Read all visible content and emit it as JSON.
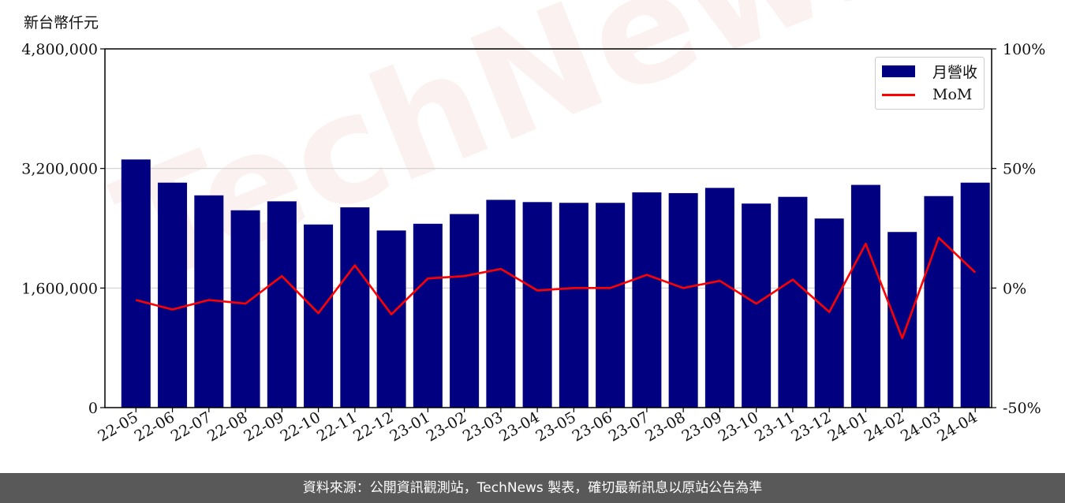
{
  "unit_label": "新台幣仟元",
  "footer_text": "資料來源：公開資訊觀測站，TechNews 製表，確切最新訊息以原站公告為準",
  "watermark_text": "TechNews",
  "chart_data": {
    "type": "bar",
    "categories": [
      "22-05",
      "22-06",
      "22-07",
      "22-08",
      "22-09",
      "22-10",
      "22-11",
      "22-12",
      "23-01",
      "23-02",
      "23-03",
      "23-04",
      "23-05",
      "23-06",
      "23-07",
      "23-08",
      "23-09",
      "23-10",
      "23-11",
      "23-12",
      "24-01",
      "24-02",
      "24-03",
      "24-04"
    ],
    "series": [
      {
        "name": "月營收",
        "axis": "left",
        "kind": "bar",
        "color": "#000080",
        "values": [
          3320000,
          3010000,
          2840000,
          2640000,
          2760000,
          2450000,
          2680000,
          2370000,
          2460000,
          2590000,
          2780000,
          2750000,
          2740000,
          2740000,
          2880000,
          2870000,
          2940000,
          2730000,
          2820000,
          2530000,
          2980000,
          2350000,
          2830000,
          3010000
        ]
      },
      {
        "name": "MoM",
        "axis": "right",
        "kind": "line",
        "color": "#ff0000",
        "values": [
          -5,
          -9,
          -5,
          -6.5,
          5,
          -10.5,
          9.5,
          -11,
          4,
          5,
          8,
          -1,
          0,
          0,
          5.5,
          0,
          3,
          -6.5,
          3.5,
          -10,
          18.5,
          -21,
          21,
          6.5
        ]
      }
    ],
    "y_left": {
      "min": 0,
      "max": 4800000,
      "ticks": [
        0,
        1600000,
        3200000,
        4800000
      ],
      "tick_labels": [
        "0",
        "1,600,000",
        "3,200,000",
        "4,800,000"
      ]
    },
    "y_right": {
      "min": -50,
      "max": 100,
      "ticks": [
        -50,
        0,
        50,
        100
      ],
      "tick_labels": [
        "-50%",
        "0%",
        "50%",
        "100%"
      ]
    },
    "grid": "horizontal",
    "legend_position": "top-right"
  }
}
